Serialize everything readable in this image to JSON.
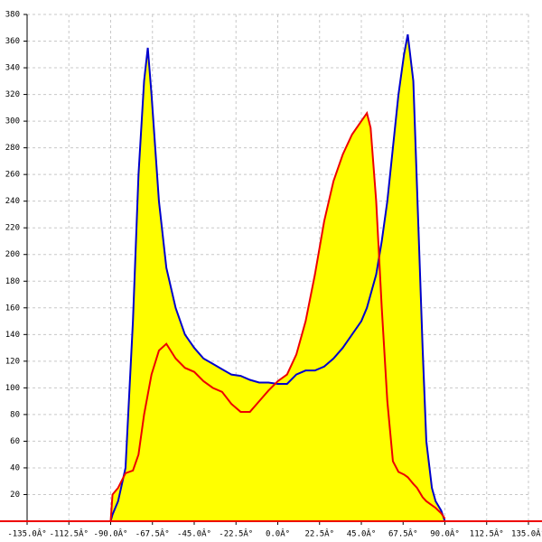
{
  "chart_data": {
    "type": "line",
    "x": [
      -90,
      -89,
      -86,
      -82,
      -78,
      -75,
      -72,
      -70,
      -68,
      -64,
      -60,
      -55,
      -50,
      -45,
      -40,
      -35,
      -30,
      -25,
      -20,
      -15,
      -10,
      -5,
      0,
      5,
      10,
      15,
      20,
      25,
      30,
      35,
      40,
      45,
      48,
      50,
      53,
      56,
      59,
      62,
      65,
      68,
      70,
      73,
      75,
      78,
      80,
      83,
      85,
      88,
      90
    ],
    "series": [
      {
        "color": "#0000cc",
        "values": [
          0,
          5,
          15,
          40,
          150,
          260,
          330,
          355,
          320,
          240,
          190,
          160,
          140,
          130,
          122,
          118,
          114,
          110,
          109,
          106,
          104,
          104,
          103,
          103,
          110,
          113,
          113,
          116,
          122,
          130,
          140,
          150,
          160,
          170,
          185,
          210,
          240,
          280,
          320,
          350,
          365,
          330,
          250,
          130,
          60,
          25,
          15,
          8,
          0
        ]
      },
      {
        "color": "#ee0000",
        "values": [
          0,
          20,
          25,
          36,
          38,
          50,
          80,
          95,
          110,
          128,
          133,
          122,
          115,
          112,
          105,
          100,
          97,
          88,
          82,
          82,
          90,
          98,
          105,
          110,
          125,
          150,
          185,
          225,
          255,
          275,
          290,
          300,
          306,
          295,
          240,
          160,
          90,
          45,
          37,
          35,
          33,
          28,
          25,
          18,
          15,
          12,
          10,
          6,
          2
        ]
      }
    ],
    "fill_color": "#ffff00",
    "xlim": [
      -135,
      135
    ],
    "xticks": [
      {
        "value": -135,
        "label": "-135.0Â°"
      },
      {
        "value": -112.5,
        "label": "-112.5Â°"
      },
      {
        "value": -90,
        "label": "-90.0Â°"
      },
      {
        "value": -67.5,
        "label": "-67.5Â°"
      },
      {
        "value": -45,
        "label": "-45.0Â°"
      },
      {
        "value": -22.5,
        "label": "-22.5Â°"
      },
      {
        "value": 0,
        "label": "0.0Â°"
      },
      {
        "value": 22.5,
        "label": "22.5Â°"
      },
      {
        "value": 45,
        "label": "45.0Â°"
      },
      {
        "value": 67.5,
        "label": "67.5Â°"
      },
      {
        "value": 90,
        "label": "90.0Â°"
      },
      {
        "value": 112.5,
        "label": "112.5Â°"
      },
      {
        "value": 135,
        "label": "135.0Â°"
      }
    ],
    "ylim": [
      0,
      380
    ],
    "yticks": [
      20,
      40,
      60,
      80,
      100,
      120,
      140,
      160,
      180,
      200,
      220,
      240,
      260,
      280,
      300,
      320,
      340,
      360,
      380
    ],
    "grid": true
  }
}
